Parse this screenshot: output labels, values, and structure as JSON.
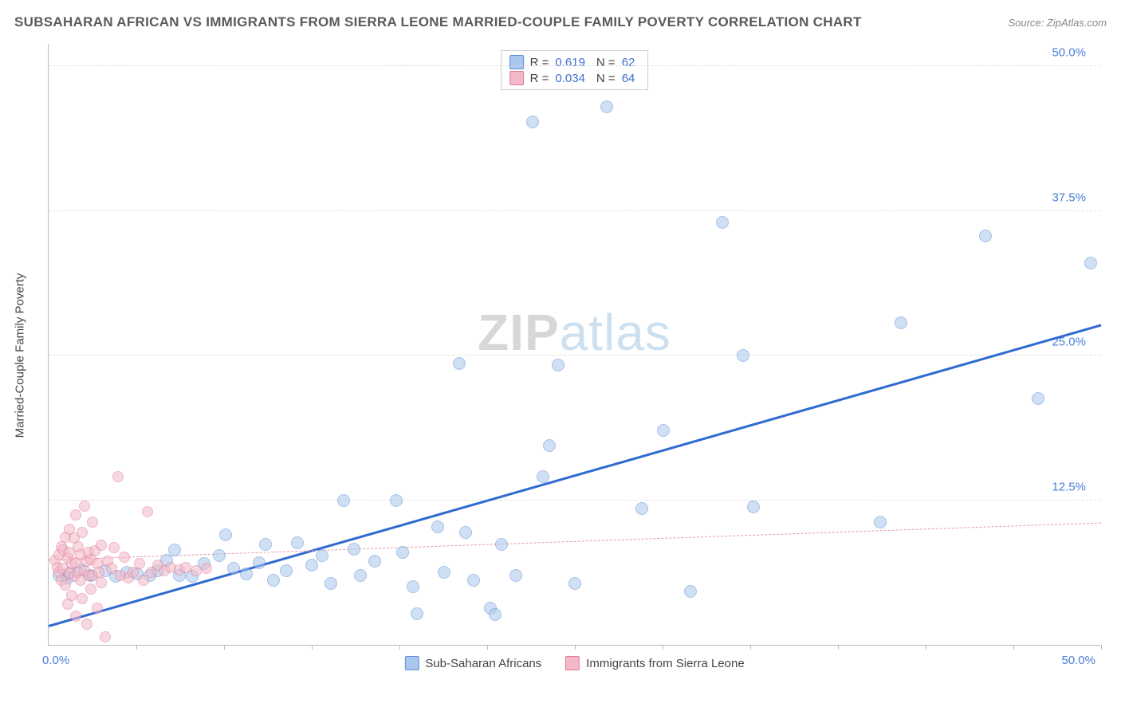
{
  "header": {
    "title": "SUBSAHARAN AFRICAN VS IMMIGRANTS FROM SIERRA LEONE MARRIED-COUPLE FAMILY POVERTY CORRELATION CHART",
    "source_prefix": "Source: ",
    "source_name": "ZipAtlas.com"
  },
  "watermark": {
    "a": "ZIP",
    "b": "atlas"
  },
  "chart": {
    "type": "scatter",
    "ylabel": "Married-Couple Family Poverty",
    "xlim": [
      0,
      50
    ],
    "ylim": [
      0,
      52
    ],
    "x_origin_label": "0.0%",
    "x_max_label": "50.0%",
    "ytick_values": [
      12.5,
      25.0,
      37.5,
      50.0
    ],
    "ytick_labels": [
      "12.5%",
      "25.0%",
      "37.5%",
      "50.0%"
    ],
    "xtick_values": [
      4.17,
      8.33,
      12.5,
      16.67,
      20.83,
      25.0,
      29.17,
      33.33,
      37.5,
      41.67,
      45.83,
      50.0
    ],
    "background_color": "#ffffff",
    "grid_color": "#dddddd",
    "axis_color": "#bbbbbb",
    "tick_label_color": "#4a7fd6",
    "series": [
      {
        "name": "Sub-Saharan Africans",
        "marker_fill": "#a9c6ec",
        "marker_stroke": "#5f8fd6",
        "marker_size": 16,
        "fill_opacity": 0.55,
        "trend": {
          "x1": 0,
          "y1": 1.5,
          "x2": 50,
          "y2": 27.5,
          "stroke": "#2f6ad1",
          "width": 3,
          "dash": "solid"
        },
        "stats": {
          "R": "0.619",
          "N": "62"
        },
        "points": [
          [
            0.5,
            6.0
          ],
          [
            0.9,
            5.8
          ],
          [
            1.0,
            6.2
          ],
          [
            1.5,
            6.5
          ],
          [
            2.0,
            6.0
          ],
          [
            2.7,
            6.4
          ],
          [
            3.2,
            5.9
          ],
          [
            3.7,
            6.3
          ],
          [
            4.2,
            6.1
          ],
          [
            4.8,
            6.0
          ],
          [
            5.2,
            6.4
          ],
          [
            5.6,
            7.3
          ],
          [
            6.0,
            8.2
          ],
          [
            6.2,
            6.0
          ],
          [
            6.8,
            5.9
          ],
          [
            7.4,
            7.0
          ],
          [
            8.1,
            7.7
          ],
          [
            8.4,
            9.5
          ],
          [
            8.8,
            6.6
          ],
          [
            9.4,
            6.1
          ],
          [
            10.0,
            7.1
          ],
          [
            10.3,
            8.7
          ],
          [
            10.7,
            5.6
          ],
          [
            11.3,
            6.4
          ],
          [
            11.8,
            8.8
          ],
          [
            12.5,
            6.9
          ],
          [
            13.0,
            7.7
          ],
          [
            13.4,
            5.3
          ],
          [
            14.0,
            12.5
          ],
          [
            14.5,
            8.3
          ],
          [
            14.8,
            6.0
          ],
          [
            15.5,
            7.2
          ],
          [
            16.5,
            12.5
          ],
          [
            16.8,
            8.0
          ],
          [
            17.3,
            5.0
          ],
          [
            17.5,
            2.7
          ],
          [
            18.5,
            10.2
          ],
          [
            18.8,
            6.3
          ],
          [
            19.5,
            24.3
          ],
          [
            19.8,
            9.7
          ],
          [
            20.2,
            5.6
          ],
          [
            21.0,
            3.2
          ],
          [
            21.2,
            2.6
          ],
          [
            21.5,
            8.7
          ],
          [
            22.2,
            6.0
          ],
          [
            23.0,
            45.2
          ],
          [
            23.5,
            14.5
          ],
          [
            23.8,
            17.2
          ],
          [
            24.2,
            24.2
          ],
          [
            25.0,
            5.3
          ],
          [
            26.5,
            46.5
          ],
          [
            28.2,
            11.8
          ],
          [
            29.2,
            18.5
          ],
          [
            30.5,
            4.6
          ],
          [
            32.0,
            36.5
          ],
          [
            33.0,
            25.0
          ],
          [
            33.5,
            11.9
          ],
          [
            39.5,
            10.6
          ],
          [
            40.5,
            27.8
          ],
          [
            44.5,
            35.3
          ],
          [
            47.0,
            21.3
          ],
          [
            49.5,
            33.0
          ]
        ]
      },
      {
        "name": "Immigrants from Sierra Leone",
        "marker_fill": "#f3b9c8",
        "marker_stroke": "#e07b97",
        "marker_size": 14,
        "fill_opacity": 0.55,
        "trend": {
          "x1": 0,
          "y1": 7.3,
          "x2": 50,
          "y2": 10.5,
          "stroke": "#e59bad",
          "width": 1.5,
          "dash": "5,5"
        },
        "stats": {
          "R": "0.034",
          "N": "64"
        },
        "points": [
          [
            0.3,
            7.3
          ],
          [
            0.4,
            6.7
          ],
          [
            0.5,
            6.3
          ],
          [
            0.5,
            7.8
          ],
          [
            0.6,
            5.6
          ],
          [
            0.6,
            8.5
          ],
          [
            0.7,
            6.6
          ],
          [
            0.7,
            8.2
          ],
          [
            0.8,
            5.2
          ],
          [
            0.8,
            9.3
          ],
          [
            0.9,
            3.5
          ],
          [
            0.9,
            7.5
          ],
          [
            1.0,
            6.2
          ],
          [
            1.0,
            8.0
          ],
          [
            1.0,
            10.0
          ],
          [
            1.1,
            4.3
          ],
          [
            1.1,
            7.0
          ],
          [
            1.2,
            5.9
          ],
          [
            1.2,
            9.2
          ],
          [
            1.3,
            2.5
          ],
          [
            1.3,
            7.1
          ],
          [
            1.3,
            11.2
          ],
          [
            1.4,
            6.3
          ],
          [
            1.4,
            8.5
          ],
          [
            1.5,
            5.6
          ],
          [
            1.5,
            7.8
          ],
          [
            1.6,
            4.0
          ],
          [
            1.6,
            9.7
          ],
          [
            1.7,
            6.4
          ],
          [
            1.7,
            12.0
          ],
          [
            1.8,
            7.2
          ],
          [
            1.8,
            1.8
          ],
          [
            1.9,
            6.0
          ],
          [
            1.9,
            8.0
          ],
          [
            2.0,
            4.8
          ],
          [
            2.0,
            7.4
          ],
          [
            2.1,
            10.6
          ],
          [
            2.1,
            6.0
          ],
          [
            2.2,
            8.1
          ],
          [
            2.3,
            3.2
          ],
          [
            2.3,
            7.0
          ],
          [
            2.4,
            6.3
          ],
          [
            2.5,
            5.4
          ],
          [
            2.5,
            8.6
          ],
          [
            2.7,
            0.7
          ],
          [
            2.8,
            7.2
          ],
          [
            3.0,
            6.6
          ],
          [
            3.1,
            8.4
          ],
          [
            3.3,
            14.5
          ],
          [
            3.4,
            6.0
          ],
          [
            3.6,
            7.6
          ],
          [
            3.8,
            5.8
          ],
          [
            4.0,
            6.3
          ],
          [
            4.3,
            7.0
          ],
          [
            4.5,
            5.6
          ],
          [
            4.7,
            11.5
          ],
          [
            4.9,
            6.3
          ],
          [
            5.2,
            6.9
          ],
          [
            5.5,
            6.4
          ],
          [
            5.8,
            6.7
          ],
          [
            6.2,
            6.5
          ],
          [
            6.5,
            6.7
          ],
          [
            7.0,
            6.4
          ],
          [
            7.5,
            6.6
          ]
        ]
      }
    ],
    "legend_top": {
      "R_label": "R  =",
      "N_label": "N  ="
    },
    "legend_bottom_labels": [
      "Sub-Saharan Africans",
      "Immigrants from Sierra Leone"
    ]
  }
}
